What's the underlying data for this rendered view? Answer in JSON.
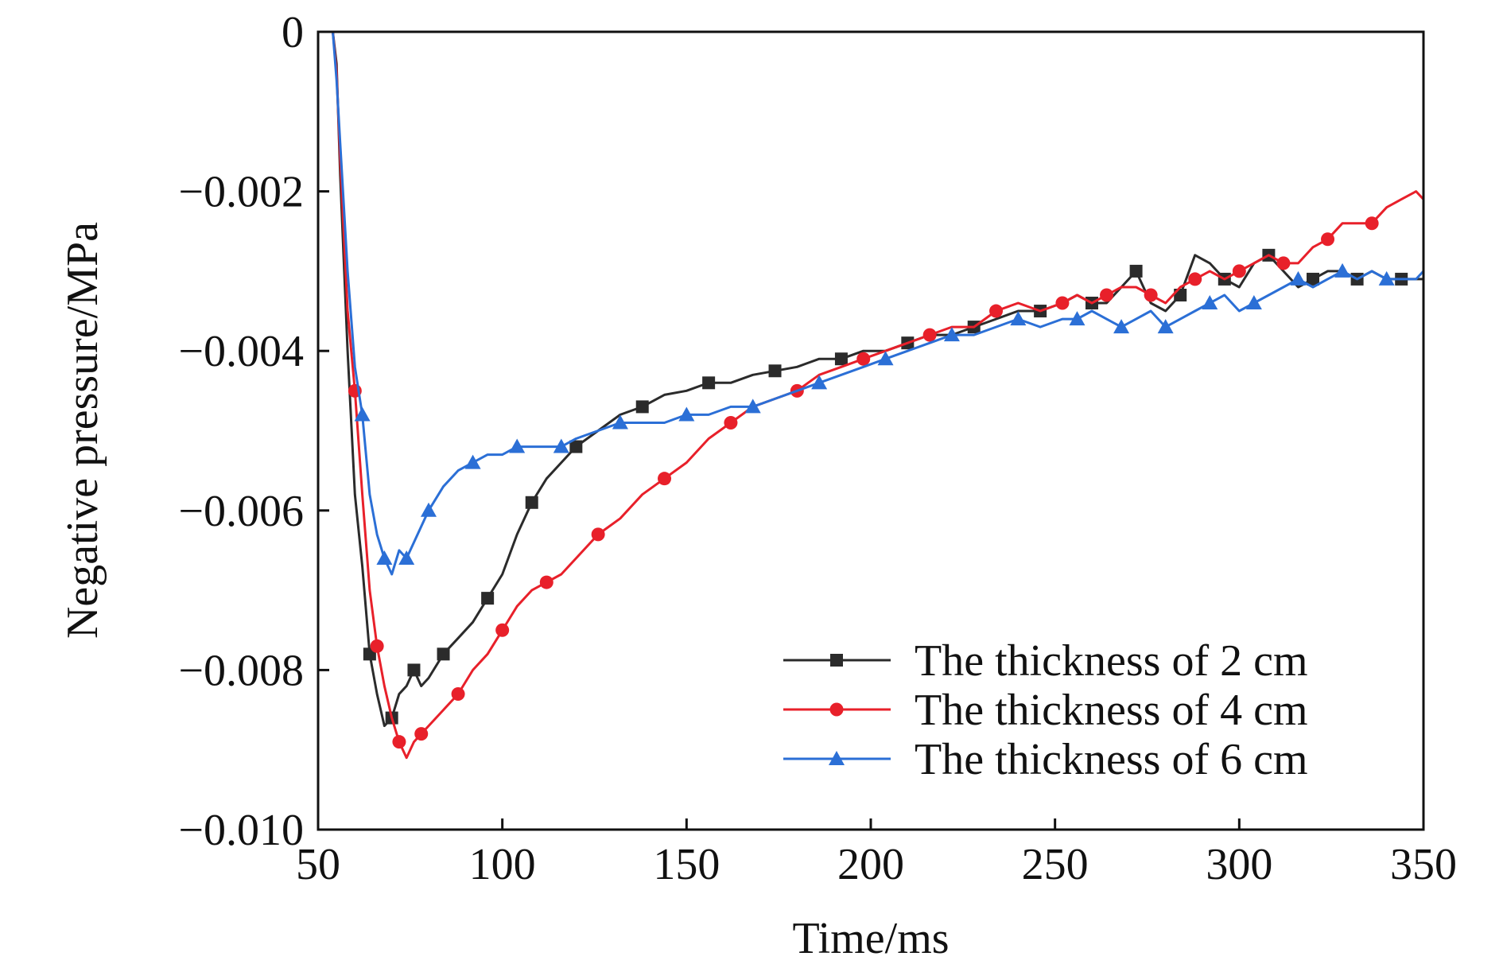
{
  "chart_data": {
    "type": "line",
    "title": "",
    "xlabel": "Time/ms",
    "ylabel": "Negative pressure/MPa",
    "xlim": [
      50,
      350
    ],
    "ylim": [
      -0.01,
      0
    ],
    "x_ticks": [
      50,
      100,
      150,
      200,
      250,
      300,
      350
    ],
    "x_tick_labels": [
      "50",
      "100",
      "150",
      "200",
      "250",
      "300",
      "350"
    ],
    "y_ticks": [
      0,
      -0.002,
      -0.004,
      -0.006,
      -0.008,
      -0.01
    ],
    "y_tick_labels": [
      "0",
      "−0.002",
      "−0.004",
      "−0.006",
      "−0.008",
      "−0.010"
    ],
    "grid": false,
    "legend_position": "bottom-right",
    "series": [
      {
        "name": "The thickness of 2 cm",
        "color": "#2b2b2b",
        "marker": "square",
        "x": [
          54,
          55,
          56,
          58,
          60,
          62,
          64,
          66,
          68,
          70,
          72,
          74,
          76,
          78,
          80,
          84,
          88,
          92,
          96,
          100,
          104,
          108,
          112,
          116,
          120,
          126,
          132,
          138,
          144,
          150,
          156,
          162,
          168,
          174,
          180,
          186,
          192,
          198,
          204,
          210,
          216,
          222,
          228,
          234,
          240,
          246,
          252,
          256,
          260,
          264,
          268,
          272,
          276,
          280,
          284,
          288,
          292,
          296,
          300,
          304,
          308,
          312,
          316,
          320,
          324,
          328,
          332,
          336,
          340,
          344,
          348,
          350
        ],
        "y": [
          0,
          -0.0004,
          -0.0018,
          -0.004,
          -0.0058,
          -0.0067,
          -0.0078,
          -0.0083,
          -0.0087,
          -0.0086,
          -0.0083,
          -0.0082,
          -0.008,
          -0.0082,
          -0.0081,
          -0.0078,
          -0.0076,
          -0.0074,
          -0.0071,
          -0.0068,
          -0.0063,
          -0.0059,
          -0.0056,
          -0.0054,
          -0.0052,
          -0.005,
          -0.0048,
          -0.0047,
          -0.00455,
          -0.0045,
          -0.0044,
          -0.0044,
          -0.0043,
          -0.00425,
          -0.0042,
          -0.0041,
          -0.0041,
          -0.004,
          -0.004,
          -0.0039,
          -0.0038,
          -0.0038,
          -0.0037,
          -0.0036,
          -0.0035,
          -0.0035,
          -0.0034,
          -0.0033,
          -0.0034,
          -0.0034,
          -0.0032,
          -0.003,
          -0.0034,
          -0.0035,
          -0.0033,
          -0.0028,
          -0.0029,
          -0.0031,
          -0.0032,
          -0.0029,
          -0.0028,
          -0.003,
          -0.0032,
          -0.0031,
          -0.003,
          -0.003,
          -0.0031,
          -0.003,
          -0.0031,
          -0.0031,
          -0.0031,
          -0.0031
        ]
      },
      {
        "name": "The thickness of 4 cm",
        "color": "#e8202a",
        "marker": "circle",
        "x": [
          54,
          55,
          56,
          58,
          60,
          62,
          64,
          66,
          68,
          70,
          72,
          74,
          76,
          78,
          80,
          84,
          88,
          92,
          96,
          100,
          104,
          108,
          112,
          116,
          120,
          126,
          132,
          138,
          144,
          150,
          156,
          162,
          168,
          174,
          180,
          186,
          192,
          198,
          204,
          210,
          216,
          222,
          228,
          234,
          240,
          246,
          252,
          256,
          260,
          264,
          268,
          272,
          276,
          280,
          284,
          288,
          292,
          296,
          300,
          304,
          308,
          312,
          316,
          320,
          324,
          328,
          332,
          336,
          340,
          344,
          348,
          350
        ],
        "y": [
          0,
          -0.0005,
          -0.0016,
          -0.0035,
          -0.0045,
          -0.0058,
          -0.007,
          -0.0077,
          -0.0082,
          -0.0086,
          -0.0089,
          -0.0091,
          -0.0089,
          -0.0088,
          -0.0087,
          -0.0085,
          -0.0083,
          -0.008,
          -0.0078,
          -0.0075,
          -0.0072,
          -0.007,
          -0.0069,
          -0.0068,
          -0.0066,
          -0.0063,
          -0.0061,
          -0.0058,
          -0.0056,
          -0.0054,
          -0.0051,
          -0.0049,
          -0.0047,
          -0.0046,
          -0.0045,
          -0.0043,
          -0.0042,
          -0.0041,
          -0.004,
          -0.0039,
          -0.0038,
          -0.0037,
          -0.0037,
          -0.0035,
          -0.0034,
          -0.0035,
          -0.0034,
          -0.0033,
          -0.0034,
          -0.0033,
          -0.0032,
          -0.0032,
          -0.0033,
          -0.0034,
          -0.0032,
          -0.0031,
          -0.003,
          -0.0031,
          -0.003,
          -0.0029,
          -0.0028,
          -0.0029,
          -0.0029,
          -0.0027,
          -0.0026,
          -0.0024,
          -0.0024,
          -0.0024,
          -0.0022,
          -0.0021,
          -0.002,
          -0.0021
        ]
      },
      {
        "name": "The thickness of 6 cm",
        "color": "#2b6fd6",
        "marker": "triangle",
        "x": [
          54,
          55,
          56,
          58,
          60,
          62,
          64,
          66,
          68,
          70,
          72,
          74,
          76,
          78,
          80,
          84,
          88,
          92,
          96,
          100,
          104,
          108,
          112,
          116,
          120,
          126,
          132,
          138,
          144,
          150,
          156,
          162,
          168,
          174,
          180,
          186,
          192,
          198,
          204,
          210,
          216,
          222,
          228,
          234,
          240,
          246,
          252,
          256,
          260,
          264,
          268,
          272,
          276,
          280,
          284,
          288,
          292,
          296,
          300,
          304,
          308,
          312,
          316,
          320,
          324,
          328,
          332,
          336,
          340,
          344,
          348,
          350
        ],
        "y": [
          0,
          -0.0006,
          -0.0014,
          -0.003,
          -0.0042,
          -0.0048,
          -0.0058,
          -0.0063,
          -0.0066,
          -0.0068,
          -0.0065,
          -0.0066,
          -0.0064,
          -0.0062,
          -0.006,
          -0.0057,
          -0.0055,
          -0.0054,
          -0.0053,
          -0.0053,
          -0.0052,
          -0.0052,
          -0.0052,
          -0.0052,
          -0.0051,
          -0.005,
          -0.0049,
          -0.0049,
          -0.0049,
          -0.0048,
          -0.0048,
          -0.0047,
          -0.0047,
          -0.0046,
          -0.0045,
          -0.0044,
          -0.0043,
          -0.0042,
          -0.0041,
          -0.004,
          -0.0039,
          -0.0038,
          -0.0038,
          -0.0037,
          -0.0036,
          -0.0037,
          -0.0036,
          -0.0036,
          -0.0035,
          -0.0036,
          -0.0037,
          -0.0036,
          -0.0035,
          -0.0037,
          -0.0036,
          -0.0035,
          -0.0034,
          -0.0033,
          -0.0035,
          -0.0034,
          -0.0033,
          -0.0032,
          -0.0031,
          -0.0032,
          -0.0031,
          -0.003,
          -0.0031,
          -0.003,
          -0.0031,
          -0.0031,
          -0.0031,
          -0.003
        ]
      }
    ]
  }
}
